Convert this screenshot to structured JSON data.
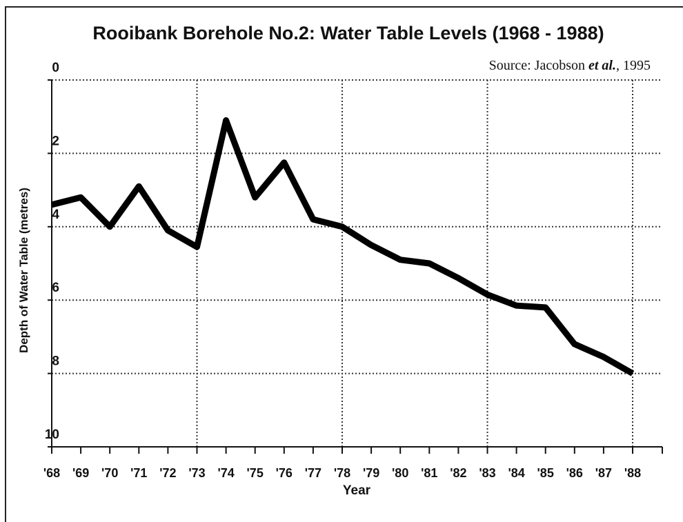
{
  "chart_data": {
    "type": "line",
    "title": "Rooibank Borehole No.2: Water Table Levels (1968 - 1988)",
    "source": [
      "Source: Jacobson ",
      "et al.",
      ", 1995"
    ],
    "x_label": "Year",
    "y_label": "Depth of Water Table (metres)",
    "categories": [
      "'68",
      "'69",
      "'70",
      "'71",
      "'72",
      "'73",
      "'74",
      "'75",
      "'76",
      "'77",
      "'78",
      "'79",
      "'80",
      "'81",
      "'82",
      "'83",
      "'84",
      "'85",
      "'86",
      "'87",
      "'88"
    ],
    "series": [
      {
        "name": "Depth of Water Table",
        "color": "#000000",
        "values": [
          3.4,
          3.2,
          4.0,
          2.9,
          4.1,
          4.55,
          1.1,
          3.2,
          2.25,
          3.8,
          4.0,
          4.5,
          4.9,
          5.0,
          5.4,
          5.85,
          6.15,
          6.2,
          7.2,
          7.55,
          8.0
        ]
      }
    ],
    "ylim": [
      0,
      10
    ],
    "yticks": [
      0,
      2,
      4,
      6,
      8,
      10
    ],
    "y_inverted": true,
    "grid": true,
    "xgrid_every": 5
  }
}
